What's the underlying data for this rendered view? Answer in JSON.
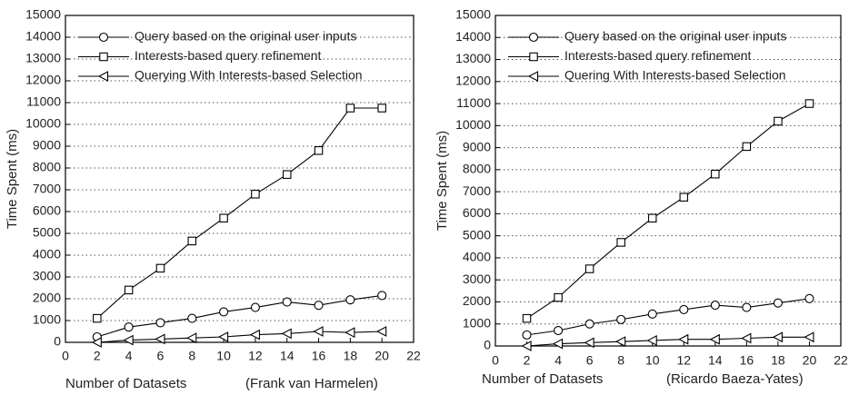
{
  "chart_data": [
    {
      "type": "line",
      "ylabel": "Time Spent (ms)",
      "xlabel": "Number of Datasets",
      "annotation": "(Frank van Harmelen)",
      "x": [
        2,
        4,
        6,
        8,
        10,
        12,
        14,
        16,
        18,
        20
      ],
      "xlim": [
        0,
        22
      ],
      "xticks": [
        0,
        2,
        4,
        6,
        8,
        10,
        12,
        14,
        16,
        18,
        20,
        22
      ],
      "ylim": [
        0,
        15000
      ],
      "yticks": [
        0,
        1000,
        2000,
        3000,
        4000,
        5000,
        6000,
        7000,
        8000,
        9000,
        10000,
        11000,
        12000,
        13000,
        14000,
        15000
      ],
      "grid": true,
      "legend": "upper left",
      "series": [
        {
          "name": "Query based on the original user inputs",
          "color": "#000000",
          "marker": "circle",
          "values": [
            250,
            700,
            900,
            1100,
            1400,
            1600,
            1850,
            1700,
            1950,
            2150
          ]
        },
        {
          "name": "Interests-based query refinement",
          "color": "#000000",
          "marker": "square",
          "values": [
            1100,
            2400,
            3400,
            4650,
            5700,
            6800,
            7700,
            8800,
            10750,
            10750
          ]
        },
        {
          "name": "Querying With Interests-based Selection",
          "color": "#000000",
          "marker": "triangle-left",
          "values": [
            0,
            100,
            150,
            200,
            250,
            350,
            400,
            500,
            450,
            500
          ]
        }
      ]
    },
    {
      "type": "line",
      "ylabel": "Time Spent (ms)",
      "xlabel": "Number of Datasets",
      "annotation": "(Ricardo Baeza-Yates)",
      "x": [
        2,
        4,
        6,
        8,
        10,
        12,
        14,
        16,
        18,
        20
      ],
      "xlim": [
        0,
        22
      ],
      "xticks": [
        0,
        2,
        4,
        6,
        8,
        10,
        12,
        14,
        16,
        18,
        20,
        22
      ],
      "ylim": [
        0,
        15000
      ],
      "yticks": [
        0,
        1000,
        2000,
        3000,
        4000,
        5000,
        6000,
        7000,
        8000,
        9000,
        10000,
        11000,
        12000,
        13000,
        14000,
        15000
      ],
      "grid": true,
      "legend": "upper left",
      "series": [
        {
          "name": "Query based on the original user inputs",
          "color": "#000000",
          "marker": "circle",
          "values": [
            500,
            700,
            1000,
            1200,
            1450,
            1650,
            1850,
            1750,
            1950,
            2150
          ]
        },
        {
          "name": "Interests-based query refinement",
          "color": "#000000",
          "marker": "square",
          "values": [
            1250,
            2200,
            3500,
            4700,
            5800,
            6750,
            7800,
            9050,
            10200,
            11000
          ]
        },
        {
          "name": "Quering With Interests-based Selection",
          "color": "#000000",
          "marker": "triangle-left",
          "values": [
            0,
            100,
            150,
            200,
            250,
            300,
            300,
            350,
            400,
            400
          ]
        }
      ]
    }
  ]
}
